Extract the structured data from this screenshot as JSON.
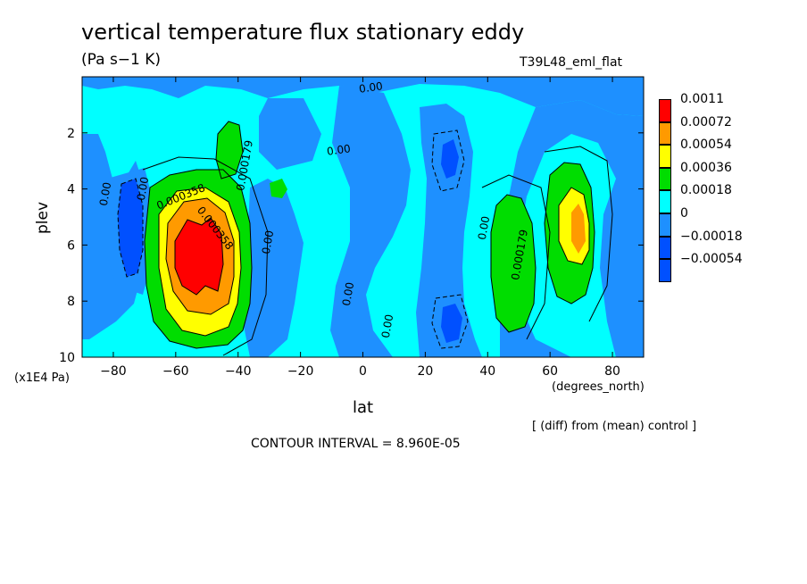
{
  "chart_data": {
    "type": "heatmap",
    "title": "vertical temperature flux stationary eddy",
    "units": "(Pa s−1 K)",
    "run_name": "T39L48_eml_flat",
    "xlabel": "lat",
    "x_unit": "(degrees_north)",
    "ylabel": "plev",
    "y_unit": "(x1E4 Pa)",
    "xlim": [
      -90,
      90
    ],
    "ylim": [
      10,
      0
    ],
    "x_ticks": [
      -80,
      -60,
      -40,
      -20,
      0,
      20,
      40,
      60,
      80
    ],
    "y_ticks": [
      2,
      4,
      6,
      8,
      10
    ],
    "contour_labels": [
      "0.00",
      "0.000179",
      "0.000358",
      "0.000358",
      "0.00",
      "0.00",
      "0.00",
      "0.00",
      "0.00",
      "0.00",
      "0.00",
      "0.000179"
    ],
    "legend": {
      "placement": "right",
      "levels": [
        "0.0011",
        "0.00072",
        "0.00054",
        "0.00036",
        "0.00018",
        "0",
        "−0.00018",
        "−0.00054"
      ],
      "colors": [
        "#ff0000",
        "#ff9a00",
        "#ffff00",
        "#00dd00",
        "#00ffff",
        "#1e90ff",
        "#0050ff",
        "#0050ff"
      ]
    },
    "note": "[ (diff) from (mean) control ]",
    "contour_interval": "CONTOUR INTERVAL = 8.960E-05"
  }
}
